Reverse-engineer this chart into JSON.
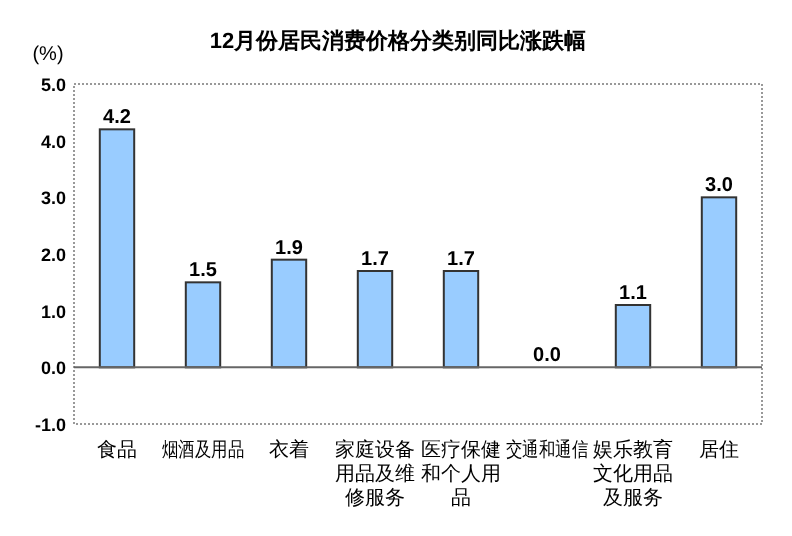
{
  "chart_data": {
    "type": "bar",
    "title": "12月份居民消费价格分类别同比涨跌幅",
    "ylabel": "(%)",
    "categories": [
      "食品",
      "烟酒及用品",
      "衣着",
      "家庭设备用品及维修服务",
      "医疗保健和个人用品",
      "交通和通信",
      "娱乐教育文化用品及服务",
      "居住"
    ],
    "values": [
      4.2,
      1.5,
      1.9,
      1.7,
      1.7,
      0.0,
      1.1,
      3.0
    ],
    "color": "#99ccff",
    "value_labels": [
      "4.2",
      "1.5",
      "1.9",
      "1.7",
      "1.7",
      "0.0",
      "1.1",
      "3.0"
    ],
    "ylim": [
      -1.0,
      5.0
    ],
    "yticks": [
      {
        "value": -1,
        "label": "-1.0"
      },
      {
        "value": 0,
        "label": "0.0"
      },
      {
        "value": 1,
        "label": "1.0"
      },
      {
        "value": 2,
        "label": "2.0"
      },
      {
        "value": 3,
        "label": "3.0"
      },
      {
        "value": 4,
        "label": "4.0"
      },
      {
        "value": 5,
        "label": "5.0"
      }
    ]
  }
}
